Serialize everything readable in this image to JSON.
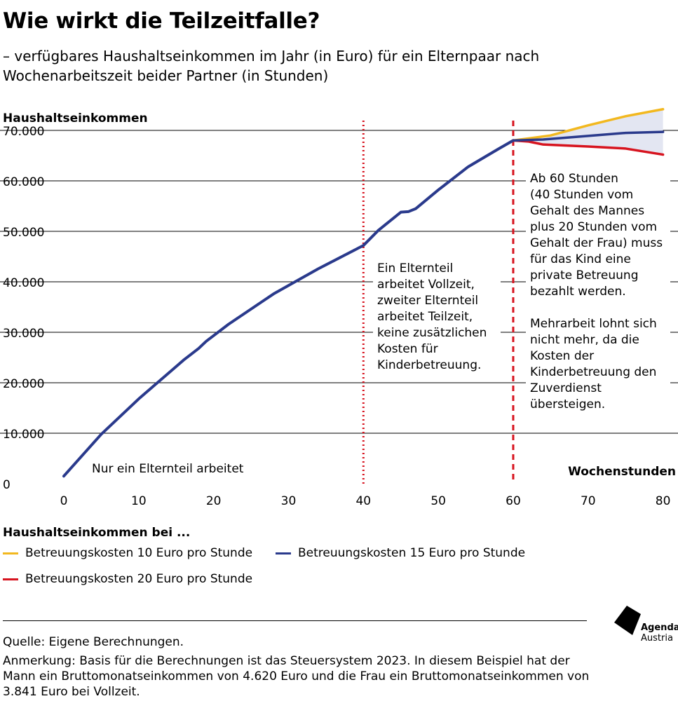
{
  "title": "Wie wirkt die Teilzeitfalle?",
  "subtitle": "– verfügbares Haushaltseinkommen im Jahr (in Euro) für ein Elternpaar nach Wochenarbeitszeit beider Partner (in Stunden)",
  "legend": {
    "title": "Haushaltseinkommen bei ...",
    "items": [
      {
        "label": "Betreuungskosten 10 Euro pro Stunde",
        "color": "#f2b81f"
      },
      {
        "label": "Betreuungskosten 15 Euro pro Stunde",
        "color": "#2a3a8c"
      },
      {
        "label": "Betreuungskosten 20 Euro pro Stunde",
        "color": "#d7141f"
      }
    ]
  },
  "source": "Quelle: Eigene Berechnungen.",
  "note": "Anmerkung: Basis für die Berechnungen ist das Steuersystem 2023. In diesem Beispiel hat der Mann ein Bruttomonatseinkommen von 4.620 Euro und die Frau ein Bruttomonatseinkommen von 3.841 Euro bei Vollzeit.",
  "logo": {
    "line1": "Agenda",
    "line2": "Austria"
  },
  "chart_data": {
    "type": "line",
    "ylabel": "Haushaltseinkommen",
    "xlabel": "Wochenstunden",
    "xlim": [
      0,
      81
    ],
    "ylim": [
      0,
      72000
    ],
    "xticks": [
      0,
      10,
      20,
      30,
      40,
      50,
      60,
      70,
      80
    ],
    "yticks": [
      0,
      10000,
      20000,
      30000,
      40000,
      50000,
      60000,
      70000
    ],
    "ytick_labels": [
      "0",
      "10.000",
      "20.000",
      "30.000",
      "40.000",
      "50.000",
      "60.000",
      "70.000"
    ],
    "grid": "horizontal",
    "base_line": {
      "color": "#2a3a8c",
      "x": [
        0,
        5,
        10,
        16,
        18,
        19,
        22,
        28,
        34,
        40,
        42,
        45,
        46,
        47,
        50,
        54,
        58,
        60
      ],
      "y": [
        1500,
        9800,
        16800,
        24500,
        26800,
        28200,
        31600,
        37600,
        42600,
        47200,
        50200,
        53800,
        53900,
        54500,
        58200,
        62800,
        66300,
        68000
      ]
    },
    "series": [
      {
        "name": "Betreuungskosten 10 Euro pro Stunde",
        "color": "#f2b81f",
        "x": [
          60,
          65,
          70,
          75,
          80
        ],
        "y": [
          68000,
          69000,
          71000,
          72800,
          74200
        ]
      },
      {
        "name": "Betreuungskosten 15 Euro pro Stunde",
        "color": "#2a3a8c",
        "x": [
          60,
          64,
          70,
          75,
          80
        ],
        "y": [
          68000,
          68200,
          68900,
          69500,
          69700
        ]
      },
      {
        "name": "Betreuungskosten 20 Euro pro Stunde",
        "color": "#d7141f",
        "x": [
          60,
          62,
          64,
          70,
          75,
          80
        ],
        "y": [
          68000,
          67800,
          67200,
          66800,
          66400,
          65200
        ]
      }
    ],
    "vlines": [
      {
        "x": 40,
        "style": "dotted",
        "color": "#d7141f"
      },
      {
        "x": 60,
        "style": "dashed",
        "color": "#d7141f"
      }
    ],
    "band": {
      "between": [
        "Betreuungskosten 10 Euro pro Stunde",
        "Betreuungskosten 20 Euro pro Stunde"
      ],
      "color": "#e3e6f2"
    },
    "annotations": [
      {
        "lines": [
          "Nur ein Elternteil arbeitet"
        ]
      },
      {
        "lines": [
          "Ein Elternteil",
          "arbeitet Vollzeit,",
          "zweiter Elternteil",
          "arbeitet Teilzeit,",
          "keine zusätzlichen",
          "Kosten für",
          "Kinderbetreuung."
        ]
      },
      {
        "lines": [
          "Ab 60 Stunden",
          "(40 Stunden vom",
          "Gehalt des Mannes",
          "plus 20 Stunden vom",
          "Gehalt der Frau) muss",
          "für das Kind eine",
          "private Betreuung",
          "bezahlt werden.",
          "",
          "Mehrarbeit lohnt sich",
          "nicht mehr, da die",
          "Kosten der",
          "Kinderbetreuung den",
          "Zuverdienst",
          "übersteigen."
        ]
      }
    ]
  }
}
